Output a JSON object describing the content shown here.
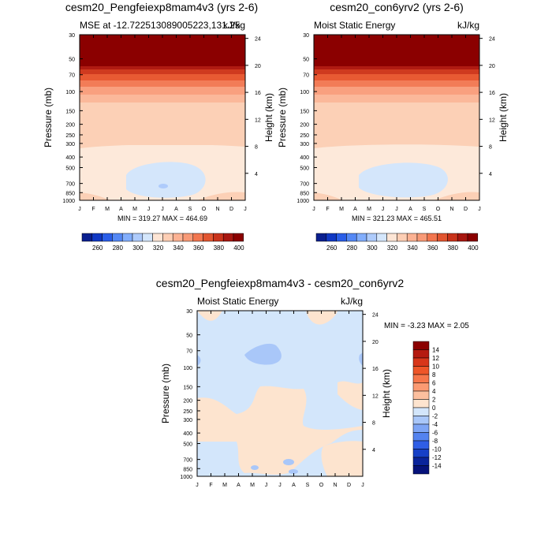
{
  "chart_data": [
    {
      "type": "contour",
      "title": "cesm20_Pengfeiexp8mam4v3 (yrs 2-6)",
      "subtitle_left": "MSE at -12.722513089005223,131.25",
      "subtitle_right": "kJ/kg",
      "ylabel": "Pressure (mb)",
      "ylabel_right": "Height (km)",
      "months": [
        "J",
        "F",
        "M",
        "A",
        "M",
        "J",
        "J",
        "A",
        "S",
        "O",
        "N",
        "D",
        "J"
      ],
      "pressure_ticks": [
        "30",
        "50",
        "70",
        "100",
        "150",
        "200",
        "250",
        "300",
        "400",
        "500",
        "700",
        "850",
        "1000"
      ],
      "height_ticks": [
        "24",
        "20",
        "16",
        "12",
        "8",
        "4"
      ],
      "minmax": "MIN = 319.27 MAX = 464.69",
      "colorbar_labels": [
        "260",
        "280",
        "300",
        "320",
        "340",
        "360",
        "380",
        "400"
      ],
      "colorbar_colors": [
        "#0a1f8f",
        "#1038c4",
        "#2a5ee8",
        "#5488f5",
        "#82aefc",
        "#aecbfb",
        "#d4e6fb",
        "#fde5d5",
        "#fdceb4",
        "#fcb293",
        "#f89a77",
        "#f2764f",
        "#e25530",
        "#c9331b",
        "#a81710",
        "#8b0000"
      ]
    },
    {
      "type": "contour",
      "title": "cesm20_con6yrv2 (yrs 2-6)",
      "subtitle_left": "Moist Static Energy",
      "subtitle_right": "kJ/kg",
      "ylabel": "Pressure (mb)",
      "ylabel_right": "Height (km)",
      "months": [
        "J",
        "F",
        "M",
        "A",
        "M",
        "J",
        "J",
        "A",
        "S",
        "O",
        "N",
        "D",
        "J"
      ],
      "pressure_ticks": [
        "30",
        "50",
        "70",
        "100",
        "150",
        "200",
        "250",
        "300",
        "400",
        "500",
        "700",
        "850",
        "1000"
      ],
      "height_ticks": [
        "24",
        "20",
        "16",
        "12",
        "8",
        "4"
      ],
      "minmax": "MIN = 321.23 MAX = 465.51",
      "colorbar_labels": [
        "260",
        "280",
        "300",
        "320",
        "340",
        "360",
        "380",
        "400"
      ],
      "colorbar_colors": [
        "#0a1f8f",
        "#1038c4",
        "#2a5ee8",
        "#5488f5",
        "#82aefc",
        "#aecbfb",
        "#d4e6fb",
        "#fde5d5",
        "#fdceb4",
        "#fcb293",
        "#f89a77",
        "#f2764f",
        "#e25530",
        "#c9331b",
        "#a81710",
        "#8b0000"
      ]
    },
    {
      "type": "contour",
      "title": "cesm20_Pengfeiexp8mam4v3 - cesm20_con6yrv2",
      "subtitle_left": "Moist Static Energy",
      "subtitle_right": "kJ/kg",
      "ylabel": "Pressure (mb)",
      "ylabel_right": "Height (km)",
      "months": [
        "J",
        "F",
        "M",
        "A",
        "M",
        "J",
        "J",
        "A",
        "S",
        "O",
        "N",
        "D",
        "J"
      ],
      "pressure_ticks": [
        "30",
        "50",
        "70",
        "100",
        "150",
        "200",
        "250",
        "300",
        "400",
        "500",
        "700",
        "850",
        "1000"
      ],
      "height_ticks": [
        "24",
        "20",
        "16",
        "12",
        "8",
        "4"
      ],
      "minmax": "MIN =  -3.23 MAX =   2.05",
      "colorbar_labels": [
        "14",
        "12",
        "10",
        "8",
        "6",
        "4",
        "2",
        "0",
        "-2",
        "-4",
        "-6",
        "-8",
        "-10",
        "-12",
        "-14"
      ],
      "colorbar_colors": [
        "#8b0000",
        "#b51a10",
        "#d8361a",
        "#ee5528",
        "#f6764a",
        "#fb9a72",
        "#fcbf9e",
        "#fde4cf",
        "#d3e6fb",
        "#a9c7f9",
        "#7ea5f5",
        "#5483ef",
        "#2f5ee6",
        "#1640c7",
        "#0a249b",
        "#06127a"
      ]
    }
  ]
}
